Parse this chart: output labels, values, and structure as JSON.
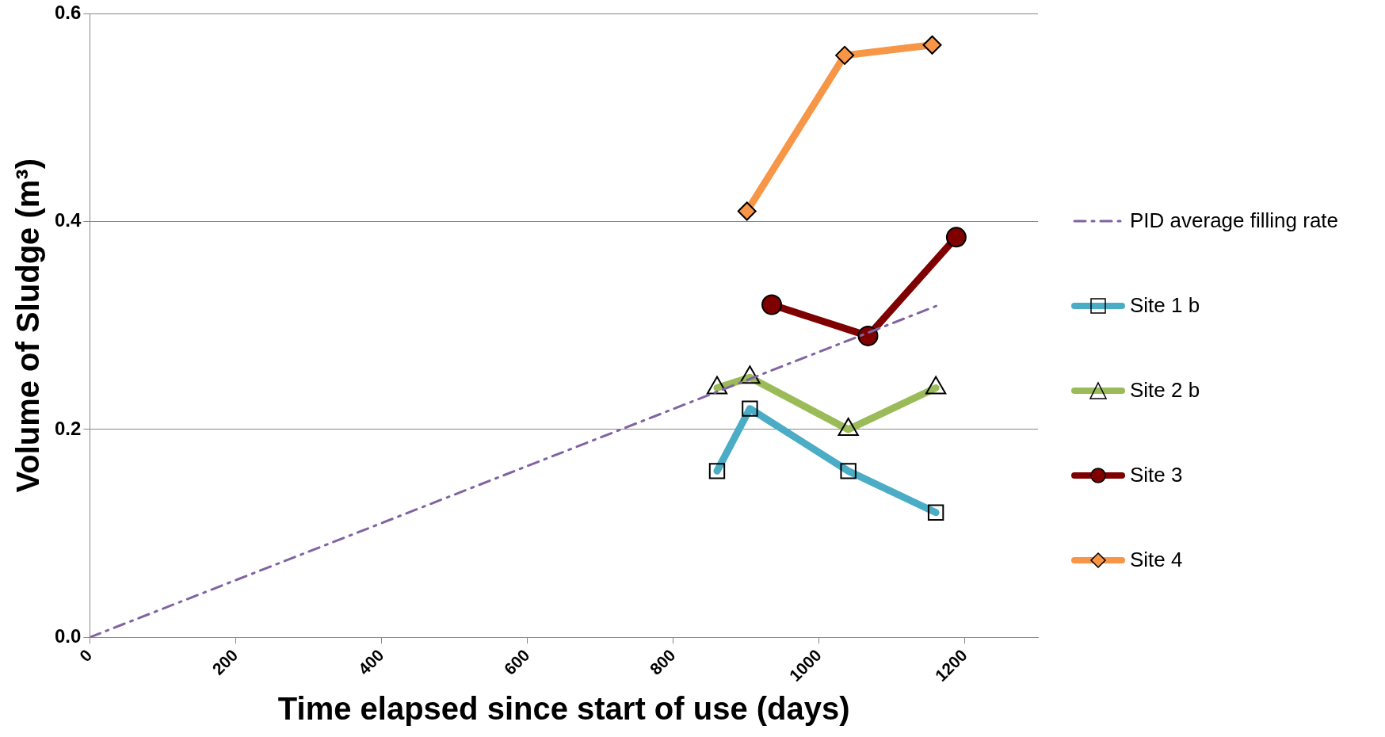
{
  "chart_data": {
    "type": "line",
    "xlabel": "Time elapsed since start of use (days)",
    "ylabel": "Volume of Sludge (m³)",
    "xlim": [
      0,
      1300
    ],
    "xticks": [
      0,
      200,
      400,
      600,
      800,
      1000,
      1200
    ],
    "ylim": [
      0,
      0.6
    ],
    "yticks": [
      {
        "value": 0,
        "label": "0.0"
      },
      {
        "value": 0.2,
        "label": "0.2"
      },
      {
        "value": 0.4,
        "label": "0.4"
      },
      {
        "value": 0.6,
        "label": "0.6"
      }
    ],
    "grid": "y",
    "legend": "right",
    "series": [
      {
        "name": "PID average filling rate",
        "color": "#8064a2",
        "x": [
          0,
          1165
        ],
        "values": [
          0,
          0.32
        ],
        "marker": "none",
        "line_style": "dashdot"
      },
      {
        "name": "Site 1 b",
        "color": "#4bacc6",
        "x": [
          860,
          905,
          1040,
          1160
        ],
        "values": [
          0.16,
          0.22,
          0.16,
          0.12
        ],
        "marker": "square",
        "line_style": "solid"
      },
      {
        "name": "Site 2 b",
        "color": "#9bbb59",
        "x": [
          860,
          905,
          1040,
          1160
        ],
        "values": [
          0.24,
          0.25,
          0.2,
          0.24
        ],
        "marker": "triangle",
        "line_style": "solid"
      },
      {
        "name": "Site 3",
        "color": "#7f0000",
        "x": [
          935,
          1067,
          1188
        ],
        "values": [
          0.32,
          0.29,
          0.385
        ],
        "marker": "circle",
        "line_style": "solid"
      },
      {
        "name": "Site 4",
        "color": "#f79646",
        "x": [
          901,
          1035,
          1155
        ],
        "values": [
          0.41,
          0.56,
          0.57
        ],
        "marker": "diamond",
        "line_style": "solid"
      }
    ]
  }
}
